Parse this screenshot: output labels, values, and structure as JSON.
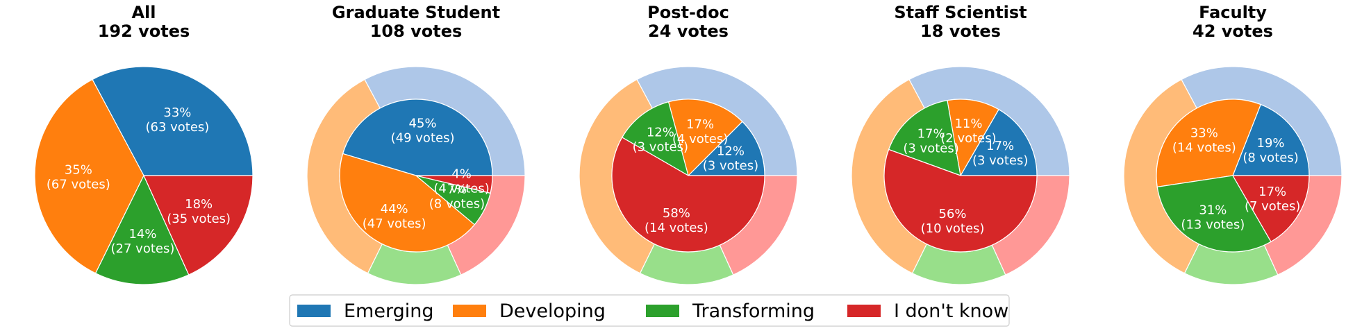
{
  "colors": {
    "inner": [
      "#1f77b4",
      "#ff7f0e",
      "#2ca02c",
      "#d62728"
    ],
    "outer": [
      "#aec7e8",
      "#ffbb78",
      "#98df8a",
      "#ff9896"
    ],
    "slice_border": "#ffffff"
  },
  "legend": {
    "location": "bottom-center",
    "labels": [
      "Emerging",
      "Developing",
      "Transforming",
      "I don't know"
    ]
  },
  "chart_data": [
    {
      "type": "pie",
      "title": "All",
      "subtitle": "192 votes",
      "categories": [
        "Emerging",
        "Developing",
        "Transforming",
        "I don't know"
      ],
      "values": [
        63,
        67,
        27,
        35
      ],
      "labels": [
        {
          "pct": "33%",
          "votes": "(63 votes)"
        },
        {
          "pct": "35%",
          "votes": "(67 votes)"
        },
        {
          "pct": "14%",
          "votes": "(27 votes)"
        },
        {
          "pct": "18%",
          "votes": "(35 votes)"
        }
      ],
      "outer_ring": null
    },
    {
      "type": "pie",
      "title": "Graduate Student",
      "subtitle": "108 votes",
      "categories": [
        "Emerging",
        "Developing",
        "Transforming",
        "I don't know"
      ],
      "values": [
        49,
        47,
        8,
        4
      ],
      "labels": [
        {
          "pct": "45%",
          "votes": "(49 votes)"
        },
        {
          "pct": "44%",
          "votes": "(47 votes)"
        },
        {
          "pct": "7%",
          "votes": "(8 votes)"
        },
        {
          "pct": "4%",
          "votes": "(4 votes)"
        }
      ],
      "outer_ring": [
        63,
        67,
        27,
        35
      ]
    },
    {
      "type": "pie",
      "title": "Post-doc",
      "subtitle": "24 votes",
      "categories": [
        "Emerging",
        "Developing",
        "Transforming",
        "I don't know"
      ],
      "values": [
        3,
        4,
        3,
        14
      ],
      "labels": [
        {
          "pct": "12%",
          "votes": "(3 votes)"
        },
        {
          "pct": "17%",
          "votes": "(4 votes)"
        },
        {
          "pct": "12%",
          "votes": "(3 votes)"
        },
        {
          "pct": "58%",
          "votes": "(14 votes)"
        }
      ],
      "outer_ring": [
        63,
        67,
        27,
        35
      ]
    },
    {
      "type": "pie",
      "title": "Staff Scientist",
      "subtitle": "18 votes",
      "categories": [
        "Emerging",
        "Developing",
        "Transforming",
        "I don't know"
      ],
      "values": [
        3,
        2,
        3,
        10
      ],
      "labels": [
        {
          "pct": "17%",
          "votes": "(3 votes)"
        },
        {
          "pct": "11%",
          "votes": "(2 votes)"
        },
        {
          "pct": "17%",
          "votes": "(3 votes)"
        },
        {
          "pct": "56%",
          "votes": "(10 votes)"
        }
      ],
      "outer_ring": [
        63,
        67,
        27,
        35
      ]
    },
    {
      "type": "pie",
      "title": "Faculty",
      "subtitle": "42 votes",
      "categories": [
        "Emerging",
        "Developing",
        "Transforming",
        "I don't know"
      ],
      "values": [
        8,
        14,
        13,
        7
      ],
      "labels": [
        {
          "pct": "19%",
          "votes": "(8 votes)"
        },
        {
          "pct": "33%",
          "votes": "(14 votes)"
        },
        {
          "pct": "31%",
          "votes": "(13 votes)"
        },
        {
          "pct": "17%",
          "votes": "(7 votes)"
        }
      ],
      "outer_ring": [
        63,
        67,
        27,
        35
      ]
    }
  ]
}
